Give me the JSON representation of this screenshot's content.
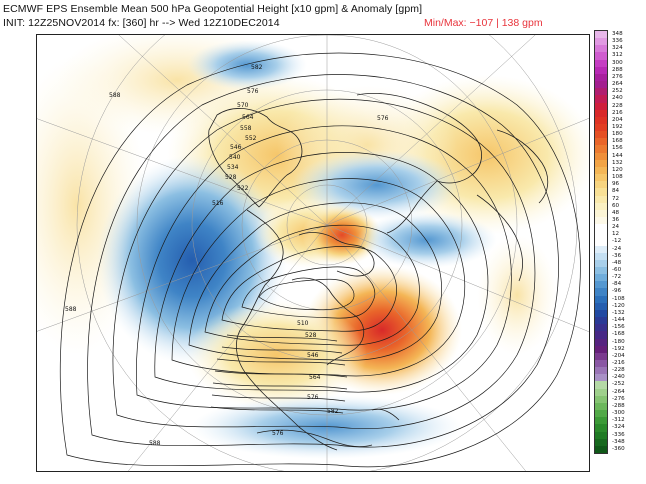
{
  "header": {
    "title": "ECMWF EPS Ensemble Mean 500 hPa Geopotential Height [x10 gpm] & Anomaly [gpm]",
    "init": "INIT: 12Z25NOV2014 fx: [360] hr --> Wed 12Z10DEC2014",
    "minmax": "Min/Max:  −107  |  138 gpm"
  },
  "colorbar": {
    "levels": [
      "348",
      "336",
      "324",
      "312",
      "300",
      "288",
      "276",
      "264",
      "252",
      "240",
      "228",
      "216",
      "204",
      "192",
      "180",
      "168",
      "156",
      "144",
      "132",
      "120",
      "108",
      "96",
      "84",
      "72",
      "60",
      "48",
      "36",
      "24",
      "12",
      "-12",
      "-24",
      "-36",
      "-48",
      "-60",
      "-72",
      "-84",
      "-96",
      "-108",
      "-120",
      "-132",
      "-144",
      "-156",
      "-168",
      "-180",
      "-192",
      "-204",
      "-216",
      "-228",
      "-240",
      "-252",
      "-264",
      "-276",
      "-288",
      "-300",
      "-312",
      "-324",
      "-336",
      "-348",
      "-360"
    ],
    "colors": [
      "#e8b8ea",
      "#e09ae2",
      "#d77ad9",
      "#cf5ccf",
      "#c53ec3",
      "#b82ab5",
      "#a8209e",
      "#a31f8f",
      "#b01e70",
      "#c21c55",
      "#cf1e3c",
      "#d82929",
      "#de3324",
      "#e23e23",
      "#e55024",
      "#e9652a",
      "#ec7a31",
      "#ef8f3a",
      "#f2a446",
      "#f4b656",
      "#f6c66a",
      "#f7d480",
      "#f8e096",
      "#f9e9ac",
      "#faf0c2",
      "#fcf5d6",
      "#fdf9e8",
      "#ffffff",
      "#ffffff",
      "#ffffff",
      "#deedf8",
      "#c4dff2",
      "#a8cfea",
      "#8cbfe2",
      "#70addb",
      "#5598d1",
      "#3f84c6",
      "#2c70bb",
      "#255eaf",
      "#2149a2",
      "#2a3a96",
      "#38308d",
      "#472886",
      "#56237f",
      "#651f79",
      "#7a3a8e",
      "#8a58a4",
      "#9a75b6",
      "#a991c6",
      "#b5d9a6",
      "#9fd08c",
      "#86c473",
      "#6cb75c",
      "#52a948",
      "#3c9a37",
      "#2b8a2b",
      "#1f7a24",
      "#17691e",
      "#0f5818"
    ]
  },
  "map_labels": [
    "588",
    "582",
    "576",
    "570",
    "564",
    "558",
    "552",
    "546",
    "540",
    "534",
    "528",
    "522",
    "516",
    "576",
    "576",
    "510",
    "528",
    "546",
    "564",
    "576",
    "582",
    "588",
    "588"
  ]
}
